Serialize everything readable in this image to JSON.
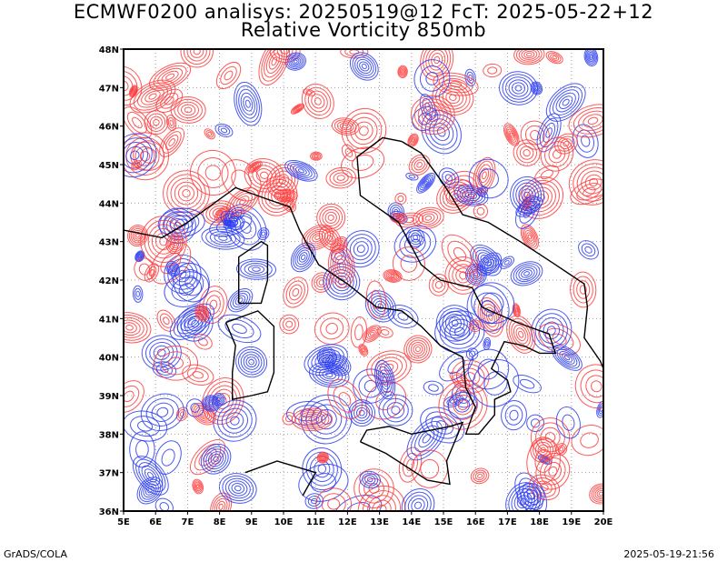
{
  "title": {
    "line1": "ECMWF0200 analisys: 20250519@12 FcT: 2025-05-22+12",
    "line2": "Relative Vorticity 850mb"
  },
  "footer": {
    "left": "GrADS/COLA",
    "right": "2025-05-19-21:56"
  },
  "map": {
    "lon_range": [
      5,
      20
    ],
    "lat_range": [
      36,
      48
    ],
    "lon_ticks": [
      "5E",
      "6E",
      "7E",
      "8E",
      "9E",
      "10E",
      "11E",
      "12E",
      "13E",
      "14E",
      "15E",
      "16E",
      "17E",
      "18E",
      "19E",
      "20E"
    ],
    "lat_ticks": [
      "36N",
      "37N",
      "38N",
      "39N",
      "40N",
      "41N",
      "42N",
      "43N",
      "44N",
      "45N",
      "46N",
      "47N",
      "48N"
    ],
    "grid": true,
    "colors": {
      "positive": "#ff3c3c",
      "negative": "#2a3cf0",
      "coast": "#000000",
      "grid": "#a0a0a0"
    }
  }
}
